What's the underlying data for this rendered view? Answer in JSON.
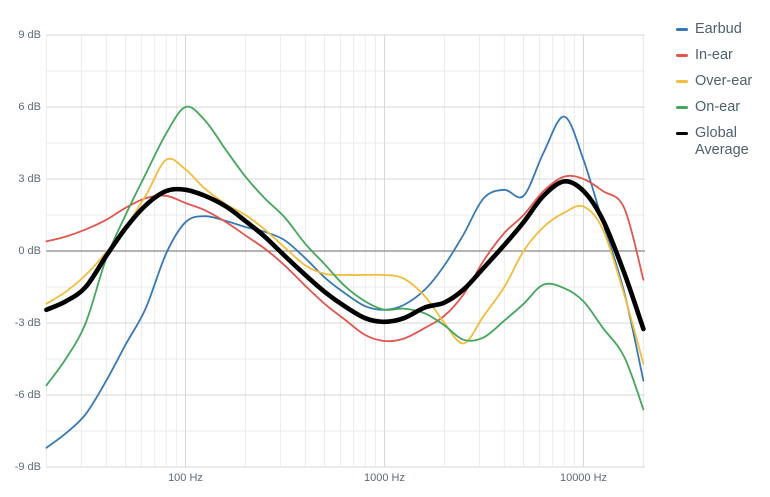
{
  "chart_data": {
    "type": "line",
    "title": "",
    "x_axis": {
      "scale": "log",
      "min": 20,
      "max": 20000,
      "unit": "Hz",
      "ticks": [
        {
          "value": 100,
          "label": "100 Hz"
        },
        {
          "value": 1000,
          "label": "1000 Hz"
        },
        {
          "value": 10000,
          "label": "10000 Hz"
        }
      ]
    },
    "y_axis": {
      "min": -9,
      "max": 9,
      "major_step": 3,
      "minor_step": 1.5,
      "unit": "dB",
      "ticks": [
        {
          "value": 9,
          "label": "9 dB"
        },
        {
          "value": 6,
          "label": "6 dB"
        },
        {
          "value": 3,
          "label": "3 dB"
        },
        {
          "value": 0,
          "label": "0 dB"
        },
        {
          "value": -3,
          "label": "-3 dB"
        },
        {
          "value": -6,
          "label": "-6 dB"
        },
        {
          "value": -9,
          "label": "-9 dB"
        }
      ],
      "zero_line": true
    },
    "grid": {
      "shown": true,
      "minor_color": "#ebebeb",
      "major_color": "#d7d7d7",
      "zero_color": "#9b9b9b"
    },
    "legend_position": "top-right",
    "frequencies": [
      20,
      25,
      31.5,
      40,
      50,
      63,
      80,
      100,
      125,
      160,
      200,
      250,
      315,
      400,
      500,
      630,
      800,
      1000,
      1250,
      1600,
      2000,
      2500,
      3150,
      4000,
      5000,
      6300,
      8000,
      10000,
      12500,
      16000,
      20000
    ],
    "series": [
      {
        "name": "Earbud",
        "color": "#3879b5",
        "stroke_width": 1.8,
        "values": [
          -8.2,
          -7.6,
          -6.8,
          -5.4,
          -3.9,
          -2.4,
          -0.1,
          1.2,
          1.45,
          1.25,
          1.0,
          0.8,
          0.45,
          -0.3,
          -1.1,
          -1.75,
          -2.3,
          -2.45,
          -2.25,
          -1.6,
          -0.6,
          0.7,
          2.2,
          2.55,
          2.3,
          4.1,
          5.6,
          3.8,
          1.2,
          -1.7,
          -5.4
        ]
      },
      {
        "name": "In-ear",
        "color": "#e05750",
        "stroke_width": 1.8,
        "values": [
          0.4,
          0.6,
          0.9,
          1.3,
          1.8,
          2.2,
          2.3,
          2.0,
          1.7,
          1.2,
          0.65,
          0.1,
          -0.6,
          -1.45,
          -2.2,
          -2.85,
          -3.5,
          -3.75,
          -3.65,
          -3.2,
          -2.7,
          -1.8,
          -0.4,
          0.75,
          1.5,
          2.5,
          3.1,
          3.0,
          2.5,
          1.8,
          -1.2
        ]
      },
      {
        "name": "Over-ear",
        "color": "#f2bd3d",
        "stroke_width": 1.8,
        "values": [
          -2.2,
          -1.7,
          -1.0,
          -0.05,
          1.0,
          2.3,
          3.8,
          3.4,
          2.6,
          1.95,
          1.5,
          0.9,
          0.15,
          -0.6,
          -0.95,
          -1.0,
          -1.0,
          -1.0,
          -1.15,
          -1.9,
          -3.0,
          -3.85,
          -2.7,
          -1.5,
          0.0,
          1.0,
          1.6,
          1.85,
          0.9,
          -1.8,
          -4.7
        ]
      },
      {
        "name": "On-ear",
        "color": "#44a75d",
        "stroke_width": 1.8,
        "values": [
          -5.6,
          -4.5,
          -3.0,
          -0.3,
          1.5,
          3.2,
          4.9,
          6.0,
          5.45,
          4.2,
          3.1,
          2.2,
          1.4,
          0.3,
          -0.55,
          -1.45,
          -2.1,
          -2.45,
          -2.4,
          -2.6,
          -3.1,
          -3.7,
          -3.6,
          -2.9,
          -2.2,
          -1.4,
          -1.55,
          -2.1,
          -3.2,
          -4.4,
          -6.6
        ]
      },
      {
        "name": "Global Average",
        "color": "#000000",
        "stroke_width": 4.6,
        "values": [
          -2.45,
          -2.1,
          -1.5,
          -0.2,
          0.95,
          1.9,
          2.5,
          2.55,
          2.3,
          1.85,
          1.25,
          0.6,
          -0.2,
          -1.0,
          -1.7,
          -2.3,
          -2.8,
          -2.95,
          -2.8,
          -2.35,
          -2.15,
          -1.6,
          -0.7,
          0.25,
          1.2,
          2.3,
          2.9,
          2.5,
          1.3,
          -0.9,
          -3.25
        ]
      }
    ]
  }
}
